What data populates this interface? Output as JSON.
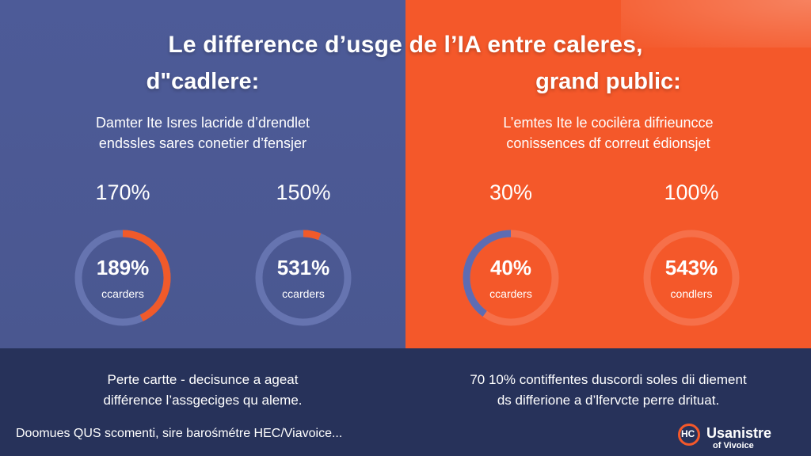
{
  "colors": {
    "left_panel": "#4d5b98",
    "right_panel": "#f4582a",
    "bottom_band": "#27325a",
    "accent_orange": "#f05a2a",
    "ring_track_left": "#6674b0",
    "ring_track_right": "#f6704a",
    "ring_progress_blue": "#5d6cb3"
  },
  "header": {
    "title": "Le difference d’usge de l’IA entre caleres,",
    "left_subtitle": "d\"cadlere:",
    "right_subtitle": "grand public:"
  },
  "left": {
    "description_line1": "Damter Ite Isres lacride d’drendlet",
    "description_line2": "endssles sares conetier d’fensjer",
    "stats": [
      {
        "top": "170%",
        "value": "189%",
        "label": "ccarders",
        "fill": 0.43,
        "fill_color": "#f05a2a",
        "track_color": "#6674b0"
      },
      {
        "top": "150%",
        "value": "531%",
        "label": "ccarders",
        "fill": 0.06,
        "fill_color": "#f05a2a",
        "track_color": "#6674b0"
      }
    ],
    "footer_line1": "Perte cartte - decisunce a ageat",
    "footer_line2": "différence l’assgecigеs qu aleme."
  },
  "right": {
    "description_line1": "L’emtes Ite le cocilėra difrieuncce",
    "description_line2": "conissences df correut édionsjet",
    "stats": [
      {
        "top": "30%",
        "value": "40%",
        "label": "ccarders",
        "fill": 0.4,
        "fill_color": "#5d6cb3",
        "track_color": "#f6704a"
      },
      {
        "top": "100%",
        "value": "543%",
        "label": "condlers",
        "fill": 0.0,
        "fill_color": "#f6704a",
        "track_color": "#f6704a"
      }
    ],
    "footer_line1": "70 10% contiffentes duscordi soles dii diement",
    "footer_line2": "ds differione a d’lfervcte perre drituat."
  },
  "source": "Doomues QUS scomenti, sire barośmétre HEC/Viavoice...",
  "brand": {
    "mark": "HC",
    "name": "Usanistre",
    "sub": "of Vivoice"
  }
}
